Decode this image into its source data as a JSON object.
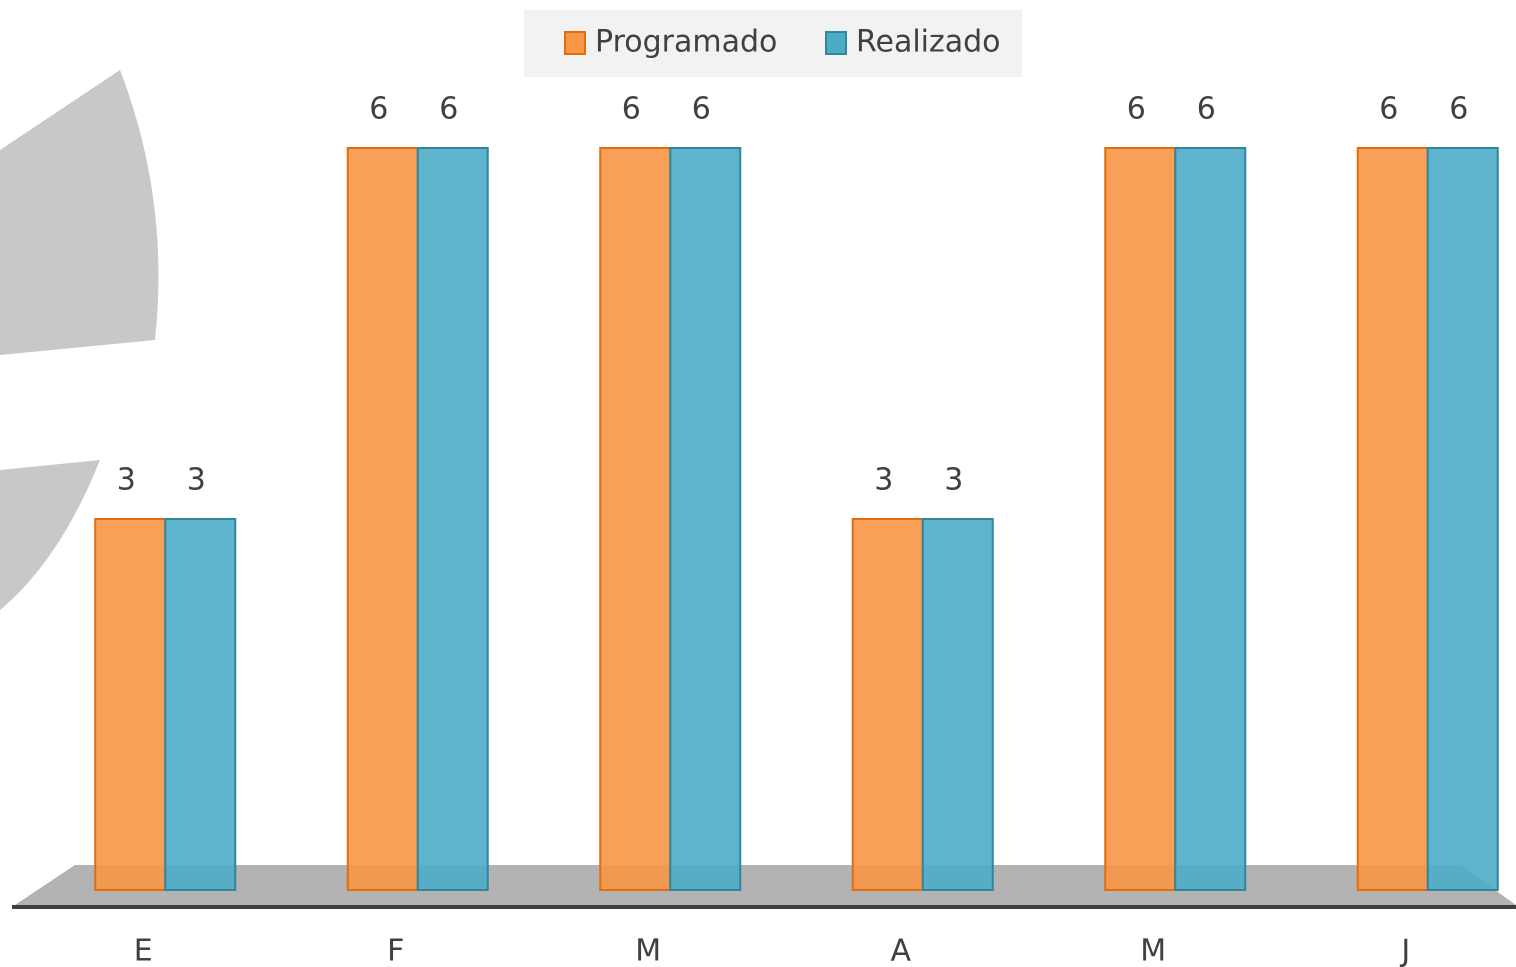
{
  "chart_data": {
    "type": "bar",
    "categories": [
      "E",
      "F",
      "M",
      "A",
      "M",
      "J"
    ],
    "series": [
      {
        "name": "Programado",
        "color": "#f79646",
        "values": [
          3,
          6,
          6,
          3,
          6,
          6
        ]
      },
      {
        "name": "Realizado",
        "color": "#4bacc6",
        "values": [
          3,
          6,
          6,
          3,
          6,
          6
        ]
      }
    ],
    "legend": "top"
  }
}
